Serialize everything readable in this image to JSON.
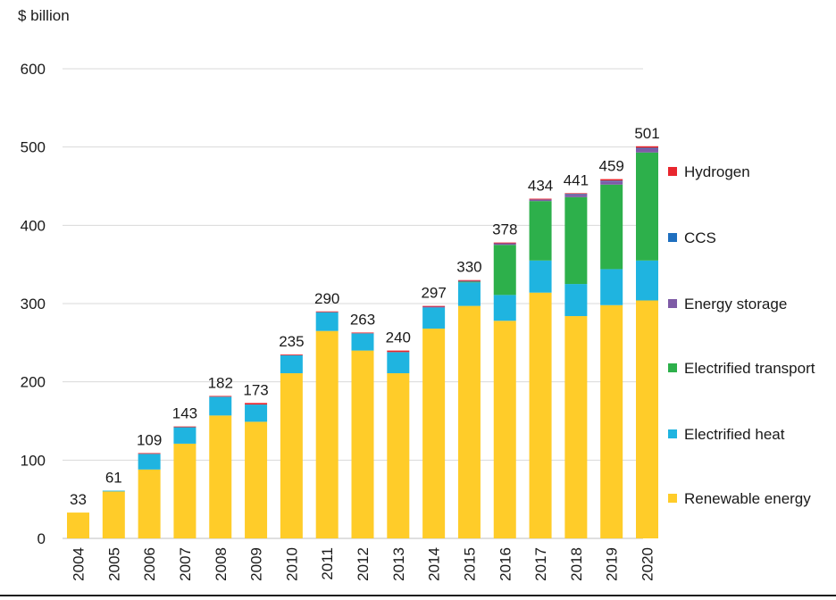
{
  "chart_data": {
    "type": "bar",
    "stacked": true,
    "ylabel": "$ billion",
    "ylim": [
      0,
      600
    ],
    "yticks": [
      0,
      100,
      200,
      300,
      400,
      500,
      600
    ],
    "grid": true,
    "legend_position": "right",
    "categories": [
      "2004",
      "2005",
      "2006",
      "2007",
      "2008",
      "2009",
      "2010",
      "2011",
      "2012",
      "2013",
      "2014",
      "2015",
      "2016",
      "2017",
      "2018",
      "2019",
      "2020"
    ],
    "totals": [
      33,
      61,
      109,
      143,
      182,
      173,
      235,
      290,
      263,
      240,
      297,
      330,
      378,
      434,
      441,
      459,
      501
    ],
    "total_labels": [
      "33",
      "61",
      "109",
      "143",
      "182",
      "173",
      "235",
      "290",
      "263",
      "240",
      "297",
      "330",
      "378",
      "434",
      "441",
      "459",
      "501"
    ],
    "series": [
      {
        "name": "Renewable energy",
        "color": "#FFCC29",
        "values": [
          33,
          60,
          88,
          121,
          157,
          149,
          211,
          265,
          240,
          211,
          268,
          297,
          278,
          314,
          284,
          298,
          304
        ]
      },
      {
        "name": "Electrified heat",
        "color": "#1FB4E0",
        "values": [
          0,
          1,
          20,
          21,
          24,
          22,
          23,
          24,
          22,
          27,
          27,
          30,
          33,
          41,
          41,
          46,
          51
        ]
      },
      {
        "name": "Electrified transport",
        "color": "#2DB04B",
        "values": [
          0,
          0,
          0,
          0,
          0,
          0,
          0,
          0,
          0,
          0,
          0,
          1,
          64,
          76,
          111,
          108,
          138
        ]
      },
      {
        "name": "Energy storage",
        "color": "#7E5BA6",
        "values": [
          0,
          0,
          0,
          0,
          0,
          0,
          0,
          0,
          0,
          0,
          1,
          1,
          2,
          2,
          3,
          4,
          5
        ]
      },
      {
        "name": "CCS",
        "color": "#1F6FBF",
        "values": [
          0,
          0,
          0,
          0,
          0,
          0,
          0,
          0,
          0,
          0,
          0,
          0,
          0,
          0,
          1,
          1,
          1
        ]
      },
      {
        "name": "Hydrogen",
        "color": "#E8262E",
        "values": [
          0,
          0,
          1,
          1,
          1,
          2,
          1,
          1,
          1,
          2,
          1,
          1,
          1,
          1,
          1,
          2,
          2
        ]
      }
    ],
    "legend": [
      {
        "name": "Hydrogen",
        "color": "#E8262E"
      },
      {
        "name": "CCS",
        "color": "#1F6FBF"
      },
      {
        "name": "Energy storage",
        "color": "#7E5BA6"
      },
      {
        "name": "Electrified transport",
        "color": "#2DB04B"
      },
      {
        "name": "Electrified heat",
        "color": "#1FB4E0"
      },
      {
        "name": "Renewable energy",
        "color": "#FFCC29"
      }
    ]
  }
}
